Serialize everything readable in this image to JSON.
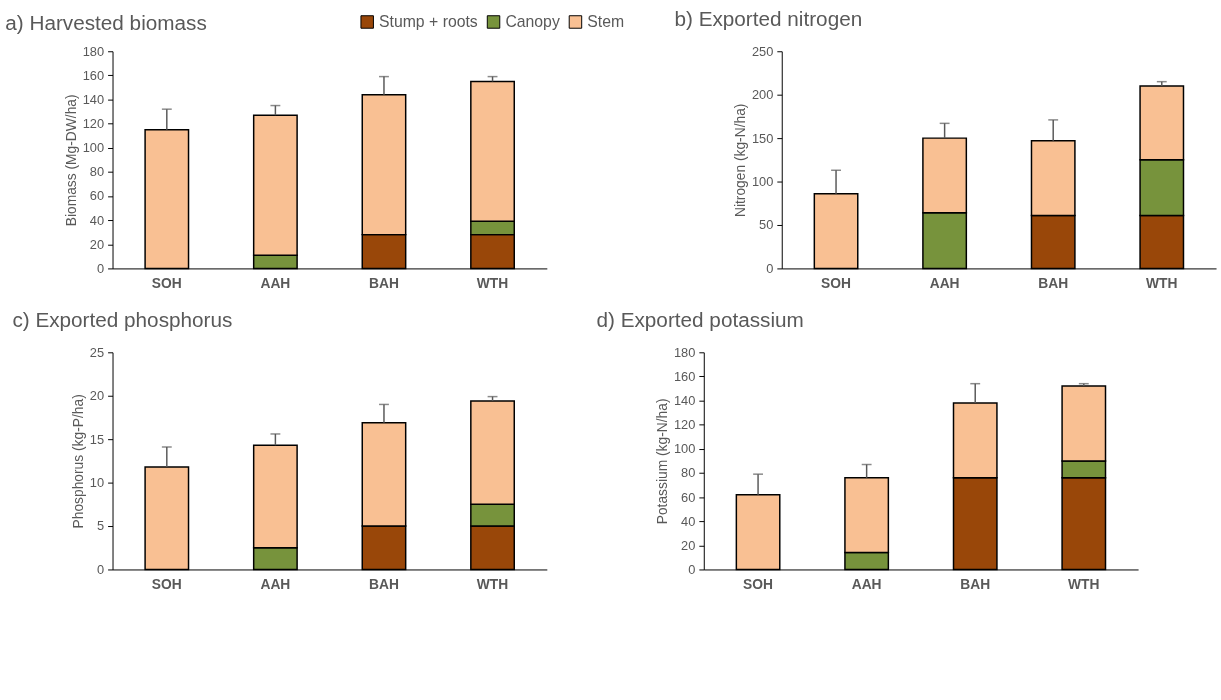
{
  "chart_data": [
    {
      "type": "bar",
      "title": "a) Harvested biomass",
      "ylabel": "Biomass (Mg-DW/ha)",
      "categories": [
        "SOH",
        "AAH",
        "BAH",
        "WTH"
      ],
      "stacked": true,
      "legend": "top right",
      "grid": false,
      "ylim": [
        0,
        180
      ],
      "yticks": [
        0,
        20,
        40,
        60,
        80,
        100,
        120,
        140,
        160,
        180
      ],
      "series": [
        {
          "name": "Stump + roots",
          "color": "#994709",
          "values": [
            null,
            null,
            28,
            28
          ]
        },
        {
          "name": "Canopy",
          "color": "#77933c",
          "values": [
            null,
            11,
            null,
            11
          ]
        },
        {
          "name": "Stem",
          "color": "#f9c093",
          "values": [
            115,
            116,
            116,
            116
          ],
          "errors": [
            [
              115,
              132
            ],
            [
              127,
              135
            ],
            [
              144,
              159
            ],
            [
              155,
              159
            ]
          ]
        }
      ]
    },
    {
      "type": "bar",
      "title": "b) Exported nitrogen",
      "ylabel": "Nitrogen (kg-N/ha)",
      "categories": [
        "SOH",
        "AAH",
        "BAH",
        "WTH"
      ],
      "stacked": true,
      "grid": false,
      "ylim": [
        0,
        250
      ],
      "yticks": [
        0,
        50,
        100,
        150,
        200,
        250
      ],
      "series": [
        {
          "color": "#994709",
          "values": [
            null,
            null,
            61,
            61
          ]
        },
        {
          "color": "#77933c",
          "values": [
            null,
            64,
            null,
            64
          ]
        },
        {
          "color": "#f9c093",
          "values": [
            86,
            86,
            86,
            85
          ],
          "errors": [
            [
              86,
              113
            ],
            [
              150,
              167
            ],
            [
              147,
              171
            ],
            [
              210,
              215
            ]
          ]
        }
      ]
    },
    {
      "type": "bar",
      "title": "c) Exported phosphorus",
      "ylabel": "Phosphorus (kg-P/ha)",
      "categories": [
        "SOH",
        "AAH",
        "BAH",
        "WTH"
      ],
      "stacked": true,
      "grid": false,
      "ylim": [
        0,
        25
      ],
      "yticks": [
        0,
        5,
        10,
        15,
        20,
        25
      ],
      "series": [
        {
          "color": "#994709",
          "values": [
            null,
            null,
            5,
            5
          ]
        },
        {
          "color": "#77933c",
          "values": [
            null,
            2.5,
            null,
            2.5
          ]
        },
        {
          "color": "#f9c093",
          "values": [
            11.8,
            11.8,
            11.9,
            11.9
          ],
          "errors": [
            [
              11.8,
              14.1
            ],
            [
              14.3,
              15.6
            ],
            [
              16.9,
              19.0
            ],
            [
              19.4,
              19.9
            ]
          ]
        }
      ]
    },
    {
      "type": "bar",
      "title": "d) Exported potassium",
      "ylabel": "Potassium (kg-N/ha)",
      "categories": [
        "SOH",
        "AAH",
        "BAH",
        "WTH"
      ],
      "stacked": true,
      "grid": false,
      "ylim": [
        0,
        180
      ],
      "yticks": [
        0,
        20,
        40,
        60,
        80,
        100,
        120,
        140,
        160,
        180
      ],
      "series": [
        {
          "color": "#994709",
          "values": [
            null,
            null,
            76,
            76
          ]
        },
        {
          "color": "#77933c",
          "values": [
            null,
            14,
            null,
            14
          ]
        },
        {
          "color": "#f9c093",
          "values": [
            62,
            62,
            62,
            62
          ],
          "errors": [
            [
              62,
              79
            ],
            [
              76,
              87
            ],
            [
              138,
              154
            ],
            [
              152,
              154
            ]
          ]
        }
      ]
    }
  ]
}
